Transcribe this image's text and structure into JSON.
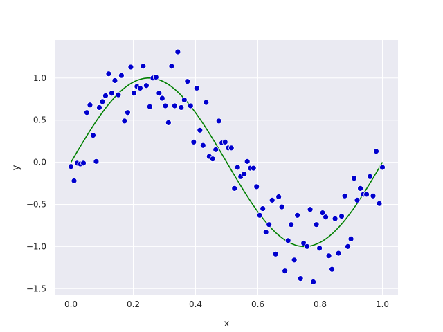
{
  "chart_data": {
    "type": "scatter",
    "title": "",
    "xlabel": "x",
    "ylabel": "y",
    "xlim": [
      -0.05,
      1.05
    ],
    "ylim": [
      -1.58,
      1.45
    ],
    "grid": true,
    "xticks": [
      0.0,
      0.2,
      0.4,
      0.6,
      0.8,
      1.0
    ],
    "yticks": [
      -1.5,
      -1.0,
      -0.5,
      0.0,
      0.5,
      1.0
    ],
    "xtick_labels": [
      "0.0",
      "0.2",
      "0.4",
      "0.6",
      "0.8",
      "1.0"
    ],
    "ytick_labels": [
      "−1.5",
      "−1.0",
      "−0.5",
      "0.0",
      "0.5",
      "1.0"
    ],
    "colors": {
      "background": "#eaeaf2",
      "grid": "#ffffff",
      "points": "#0000cd",
      "curve": "#008000"
    },
    "series": [
      {
        "kind": "scatter",
        "x": [
          0.0,
          0.01,
          0.02,
          0.03,
          0.04,
          0.051,
          0.061,
          0.071,
          0.081,
          0.091,
          0.101,
          0.111,
          0.121,
          0.131,
          0.141,
          0.152,
          0.162,
          0.172,
          0.182,
          0.192,
          0.202,
          0.212,
          0.222,
          0.232,
          0.242,
          0.253,
          0.263,
          0.273,
          0.283,
          0.293,
          0.303,
          0.313,
          0.323,
          0.333,
          0.343,
          0.354,
          0.364,
          0.374,
          0.384,
          0.394,
          0.404,
          0.414,
          0.424,
          0.434,
          0.444,
          0.455,
          0.465,
          0.475,
          0.485,
          0.495,
          0.505,
          0.515,
          0.525,
          0.535,
          0.545,
          0.556,
          0.566,
          0.576,
          0.586,
          0.596,
          0.606,
          0.616,
          0.626,
          0.636,
          0.646,
          0.657,
          0.667,
          0.677,
          0.687,
          0.697,
          0.707,
          0.717,
          0.727,
          0.737,
          0.747,
          0.758,
          0.768,
          0.778,
          0.788,
          0.798,
          0.808,
          0.818,
          0.828,
          0.838,
          0.848,
          0.859,
          0.869,
          0.879,
          0.889,
          0.899,
          0.909,
          0.919,
          0.929,
          0.939,
          0.949,
          0.96,
          0.97,
          0.98,
          0.99,
          1.0
        ],
        "y": [
          -0.05,
          -0.22,
          -0.01,
          -0.02,
          -0.01,
          0.59,
          0.68,
          0.32,
          0.01,
          0.65,
          0.72,
          0.79,
          1.05,
          0.82,
          0.97,
          0.8,
          1.03,
          0.49,
          0.59,
          1.13,
          0.82,
          0.9,
          0.88,
          1.14,
          0.91,
          0.66,
          1.0,
          1.01,
          0.82,
          0.76,
          0.67,
          0.47,
          1.14,
          0.67,
          1.31,
          0.65,
          0.74,
          0.96,
          0.67,
          0.24,
          0.88,
          0.38,
          0.2,
          0.71,
          0.07,
          0.04,
          0.15,
          0.49,
          0.23,
          0.24,
          0.17,
          0.17,
          -0.31,
          -0.06,
          -0.17,
          -0.14,
          0.01,
          -0.07,
          -0.07,
          -0.29,
          -0.63,
          -0.55,
          -0.83,
          -0.74,
          -0.45,
          -1.09,
          -0.41,
          -0.53,
          -1.29,
          -0.93,
          -0.74,
          -1.16,
          -0.63,
          -1.38,
          -0.96,
          -1.0,
          -0.56,
          -1.42,
          -0.74,
          -1.02,
          -0.6,
          -0.65,
          -1.11,
          -1.27,
          -0.67,
          -1.08,
          -0.64,
          -0.4,
          -1.0,
          -0.91,
          -0.19,
          -0.45,
          -0.31,
          -0.38,
          -0.38,
          -0.17,
          -0.4,
          0.13,
          -0.49,
          -0.06
        ]
      },
      {
        "kind": "line",
        "function": "sin(2*pi*x)",
        "x_range": [
          0,
          1
        ]
      }
    ]
  }
}
